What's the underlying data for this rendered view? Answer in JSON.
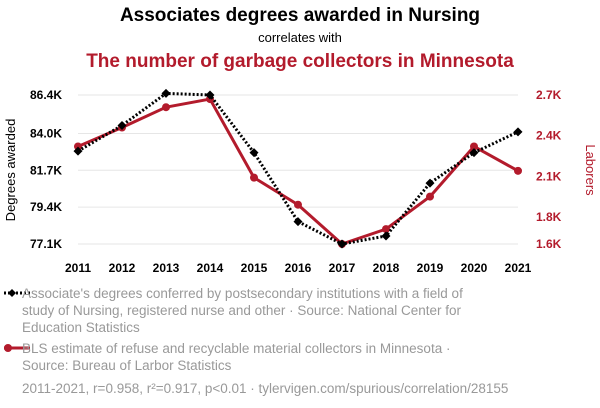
{
  "header": {
    "title": "Associates degrees awarded in Nursing",
    "connector": "correlates with",
    "title2": "The number of garbage collectors in Minnesota"
  },
  "colors": {
    "series1": "#000000",
    "series2": "#b31b2c",
    "grid": "#e6e6e6",
    "muted": "#999999"
  },
  "chart_data": {
    "type": "line",
    "x": [
      2011,
      2012,
      2013,
      2014,
      2015,
      2016,
      2017,
      2018,
      2019,
      2020,
      2021
    ],
    "series": [
      {
        "axis": "left",
        "marker": "diamond",
        "line": "dotted",
        "values": [
          82.9,
          84.5,
          86.5,
          86.4,
          82.8,
          78.5,
          77.1,
          77.6,
          80.9,
          82.8,
          84.1
        ]
      },
      {
        "axis": "right",
        "marker": "circle",
        "line": "solid",
        "values": [
          2.32,
          2.46,
          2.61,
          2.67,
          2.09,
          1.89,
          1.6,
          1.71,
          1.95,
          2.32,
          2.14
        ]
      }
    ],
    "left_axis": {
      "label": "Degrees awarded",
      "ticks": [
        77.1,
        79.4,
        81.7,
        84.0,
        86.4
      ],
      "tick_labels": [
        "77.1K",
        "79.4K",
        "81.7K",
        "84.0K",
        "86.4K"
      ],
      "ylim": [
        77.1,
        86.4
      ]
    },
    "right_axis": {
      "label": "Laborers",
      "ticks": [
        1.6,
        1.8,
        2.1,
        2.4,
        2.7
      ],
      "tick_labels": [
        "1.6K",
        "1.8K",
        "2.1K",
        "2.4K",
        "2.7K"
      ],
      "ylim": [
        1.6,
        2.7
      ]
    },
    "grid": "horizontal"
  },
  "legend": {
    "item1_line1": "Associate's degrees conferred by postsecondary institutions with a field of",
    "item1_line2": "study of Nursing, registered nurse and other · Source: National Center for",
    "item1_line3": "Education Statistics",
    "item2_line1": "BLS estimate of refuse and recyclable material collectors in Minnesota ·",
    "item2_line2": "Source: Bureau of Larbor Statistics"
  },
  "footer": "2011-2021, r=0.958, r²=0.917, p<0.01 · tylervigen.com/spurious/correlation/28155"
}
